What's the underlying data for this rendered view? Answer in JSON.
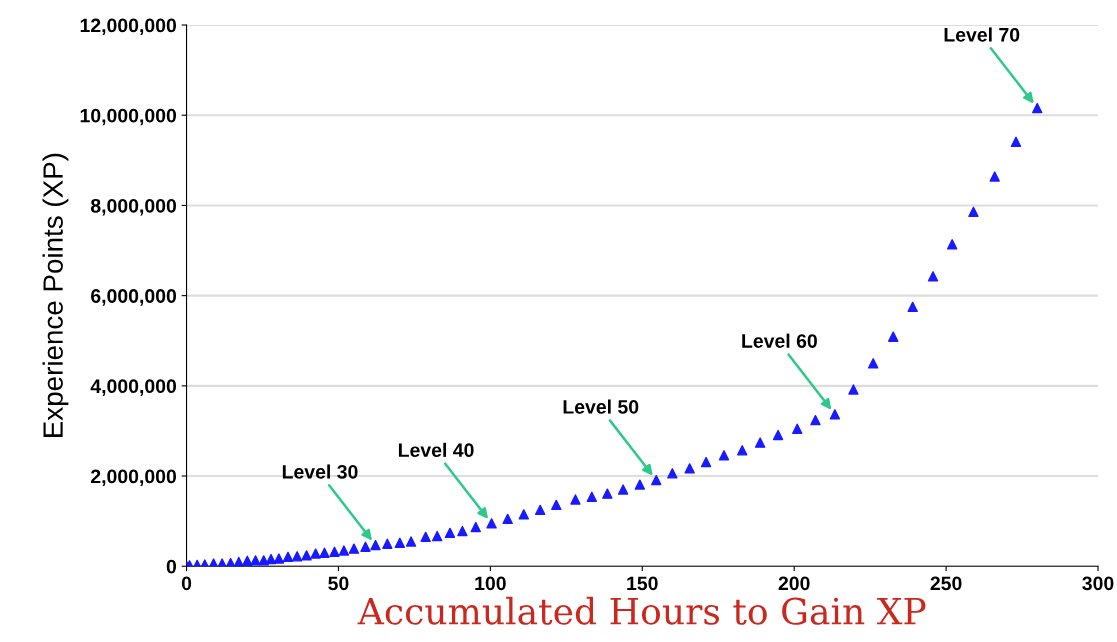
{
  "chart_data": {
    "type": "scatter",
    "xlabel": "Accumulated Hours to Gain XP",
    "ylabel": "Experience Points (XP)",
    "marker": "triangle",
    "grid": "y",
    "xlim": [
      0,
      300
    ],
    "xticks": [
      0,
      50,
      100,
      150,
      200,
      250,
      300
    ],
    "ylim": [
      0,
      12000000
    ],
    "yticks": [
      {
        "value": 0,
        "label": "0"
      },
      {
        "value": 2000000,
        "label": "2,000,000"
      },
      {
        "value": 4000000,
        "label": "4,000,000"
      },
      {
        "value": 6000000,
        "label": "6,000,000"
      },
      {
        "value": 8000000,
        "label": "8,000,000"
      },
      {
        "value": 10000000,
        "label": "10,000,000"
      },
      {
        "value": 12000000,
        "label": "12,000,000"
      }
    ],
    "series": [
      {
        "color": "#1a1aff",
        "x": [
          0,
          1,
          3.5,
          6,
          8.9,
          11.7,
          14.5,
          17.2,
          20,
          22.7,
          25.4,
          27.8,
          30.4,
          33.4,
          36.4,
          39.5,
          42.5,
          45.4,
          48.7,
          51.8,
          55.1,
          58.9,
          62.2,
          66.1,
          70.2,
          73.9,
          78.7,
          82.5,
          86.7,
          90.8,
          95.2,
          100.4,
          105.7,
          111,
          116.4,
          121.7,
          128,
          133.4,
          138.5,
          143.7,
          149.2,
          154.6,
          159.9,
          165.6,
          171,
          176.9,
          182.9,
          188.8,
          194.7,
          201,
          207,
          213.4,
          219.5,
          226,
          232.6,
          239,
          245.7,
          252,
          259,
          266,
          273,
          280
        ],
        "values": [
          10000,
          20000,
          30000,
          40000,
          60000,
          60000,
          70000,
          95000,
          120000,
          130000,
          130000,
          160000,
          170000,
          210000,
          220000,
          240000,
          280000,
          300000,
          320000,
          350000,
          390000,
          430000,
          470000,
          500000,
          520000,
          550000,
          650000,
          670000,
          740000,
          780000,
          870000,
          950000,
          1050000,
          1150000,
          1250000,
          1360000,
          1480000,
          1540000,
          1610000,
          1700000,
          1810000,
          1910000,
          2060000,
          2170000,
          2310000,
          2460000,
          2570000,
          2740000,
          2910000,
          3050000,
          3240000,
          3370000,
          3920000,
          4500000,
          5090000,
          5750000,
          6430000,
          7140000,
          7860000,
          8640000,
          9410000,
          10160000
        ]
      }
    ],
    "annotations": [
      {
        "text": "Level 30",
        "x": 62.2,
        "y": 470000
      },
      {
        "text": "Level 40",
        "x": 100.4,
        "y": 950000
      },
      {
        "text": "Level 50",
        "x": 154.6,
        "y": 1910000
      },
      {
        "text": "Level 60",
        "x": 213.4,
        "y": 3370000
      },
      {
        "text": "Level 70",
        "x": 280,
        "y": 10160000
      }
    ]
  }
}
